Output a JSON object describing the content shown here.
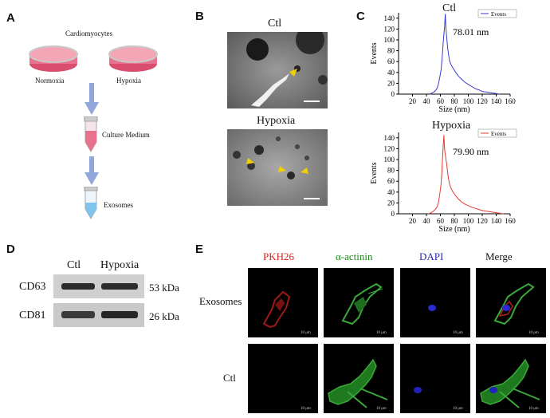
{
  "panels": {
    "A": "A",
    "B": "B",
    "C": "C",
    "D": "D",
    "E": "E"
  },
  "panelA": {
    "title": "Cardiomyocytes",
    "normoxia": "Normoxia",
    "hypoxia": "Hypoxia",
    "culture_medium": "Culture Medium",
    "exosomes": "Exosomes"
  },
  "panelB": {
    "ctl": "Ctl",
    "hypoxia": "Hypoxia"
  },
  "panelC": {
    "top_title": "Ctl",
    "bottom_title": "Hypoxia",
    "top_annotation": "78.01 nm",
    "bottom_annotation": "79.90 nm",
    "legend": "Events",
    "ylabel": "Events",
    "xlabel": "Size (nm)",
    "top_color": "#3a3acf",
    "bottom_color": "#e23b2e"
  },
  "panelD": {
    "col_ctl": "Ctl",
    "col_hypoxia": "Hypoxia",
    "rows": [
      {
        "protein": "CD63",
        "size": "53 kDa"
      },
      {
        "protein": "CD81",
        "size": "26 kDa"
      }
    ]
  },
  "panelE": {
    "headers": [
      {
        "label": "PKH26",
        "color": "#e02020"
      },
      {
        "label": "α-actinin",
        "color": "#1a8a1a"
      },
      {
        "label": "DAPI",
        "color": "#2a2aa8"
      },
      {
        "label": "Merge",
        "color": "#111111"
      }
    ],
    "rows": [
      "Exosomes",
      "Ctl"
    ],
    "scale": "10 μm"
  },
  "chart_data": [
    {
      "type": "line",
      "title": "Ctl",
      "xlabel": "Size (nm)",
      "ylabel": "Events",
      "xlim": [
        0,
        160
      ],
      "ylim": [
        0,
        150
      ],
      "xticks": [
        20,
        40,
        60,
        80,
        100,
        120,
        140,
        160
      ],
      "yticks": [
        0,
        20,
        40,
        60,
        80,
        100,
        120,
        140
      ],
      "legend": "top-right",
      "annotation": "78.01 nm",
      "series": [
        {
          "name": "Events",
          "x": [
            45,
            48,
            52,
            55,
            57,
            59,
            61,
            62,
            63,
            64,
            65,
            66,
            67,
            68,
            69,
            70,
            71,
            72,
            73,
            75,
            78,
            82,
            86,
            90,
            95,
            100,
            105,
            110,
            115,
            120,
            125,
            130,
            135,
            140,
            145
          ],
          "y": [
            0,
            2,
            5,
            10,
            18,
            30,
            45,
            60,
            75,
            95,
            110,
            125,
            148,
            120,
            105,
            90,
            80,
            70,
            62,
            55,
            48,
            40,
            33,
            28,
            22,
            18,
            14,
            10,
            8,
            5,
            4,
            3,
            2,
            1,
            0
          ]
        }
      ]
    },
    {
      "type": "line",
      "title": "Hypoxia",
      "xlabel": "Size (nm)",
      "ylabel": "Events",
      "xlim": [
        0,
        160
      ],
      "ylim": [
        0,
        150
      ],
      "xticks": [
        20,
        40,
        60,
        80,
        100,
        120,
        140,
        160
      ],
      "yticks": [
        0,
        20,
        40,
        60,
        80,
        100,
        120,
        140
      ],
      "legend": "top-right",
      "annotation": "79.90 nm",
      "series": [
        {
          "name": "Events",
          "x": [
            42,
            45,
            48,
            52,
            55,
            57,
            59,
            61,
            62,
            63,
            64,
            65,
            66,
            67,
            68,
            69,
            70,
            71,
            72,
            73,
            75,
            78,
            82,
            86,
            90,
            95,
            100,
            105,
            110,
            115,
            120,
            125,
            130,
            135,
            140,
            145,
            150
          ],
          "y": [
            0,
            1,
            3,
            7,
            12,
            20,
            35,
            55,
            75,
            100,
            125,
            145,
            118,
            110,
            100,
            92,
            80,
            70,
            62,
            55,
            48,
            40,
            33,
            27,
            22,
            18,
            15,
            12,
            10,
            8,
            6,
            5,
            4,
            3,
            2,
            1,
            0
          ]
        }
      ]
    }
  ]
}
